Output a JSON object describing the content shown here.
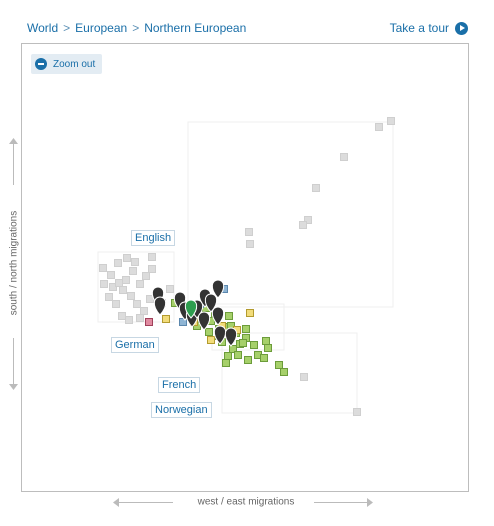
{
  "breadcrumb": {
    "items": [
      "World",
      "European",
      "Northern European"
    ],
    "separator": ">"
  },
  "tour": {
    "label": "Take a tour"
  },
  "zoom": {
    "label": "Zoom out"
  },
  "axes": {
    "y_label": "south / north migrations",
    "x_label": "west / east migrations"
  },
  "labels": {
    "english": "English",
    "german": "German",
    "french": "French",
    "norwegian": "Norwegian"
  },
  "colors": {
    "link": "#1a6fa8",
    "marker_dark": "#333333",
    "marker_selected": "#2e9e4f",
    "green_square": "#a6d06a",
    "yellow_square": "#f2dc7a",
    "blue_square": "#8fb5d4",
    "pink_square": "#e08aa0",
    "gray_square": "#dcdcdc"
  }
}
